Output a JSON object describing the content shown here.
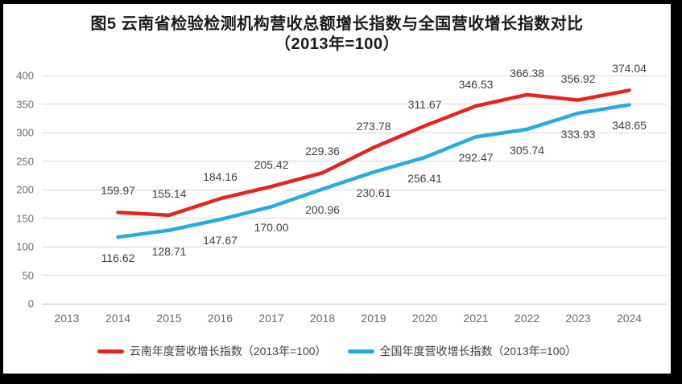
{
  "title": {
    "line1": "图5  云南省检验检测机构营收总额增长指数与全国营收增长指数对比",
    "line2": "（2013年=100）"
  },
  "colors": {
    "yunnan_line": "#e8231d",
    "national_line": "#27a9e1",
    "gridline": "#d9d9d9",
    "axis_baseline": "#bfbfbf",
    "axis_text": "#6a6a6a",
    "data_label_text": "#404040",
    "title_text": "#1a1a1a",
    "frame": "#000000",
    "background": "#ffffff"
  },
  "chart_data": {
    "type": "line",
    "title": "图5 云南省检验检测机构营收总额增长指数与全国营收增长指数对比（2013年=100）",
    "categories": [
      "2013",
      "2014",
      "2015",
      "2016",
      "2017",
      "2018",
      "2019",
      "2020",
      "2021",
      "2022",
      "2023",
      "2024"
    ],
    "series": [
      {
        "name": "云南年度营收增长指数（2013年=100）",
        "color": "#e8231d",
        "label_position": "above",
        "values": [
          null,
          159.97,
          155.14,
          184.16,
          205.42,
          229.36,
          273.78,
          311.67,
          346.53,
          366.38,
          356.92,
          374.04
        ]
      },
      {
        "name": "全国年度营收增长指数（2013年=100）",
        "color": "#27a9e1",
        "label_position": "below",
        "values": [
          null,
          116.62,
          128.71,
          147.67,
          170.0,
          200.96,
          230.61,
          256.41,
          292.47,
          305.74,
          333.93,
          348.65
        ]
      }
    ],
    "y_ticks": [
      0,
      50,
      100,
      150,
      200,
      250,
      300,
      350,
      400
    ],
    "ylim": [
      0,
      400
    ],
    "grid": true,
    "legend_position": "bottom",
    "data_labels_decimals": 2
  }
}
